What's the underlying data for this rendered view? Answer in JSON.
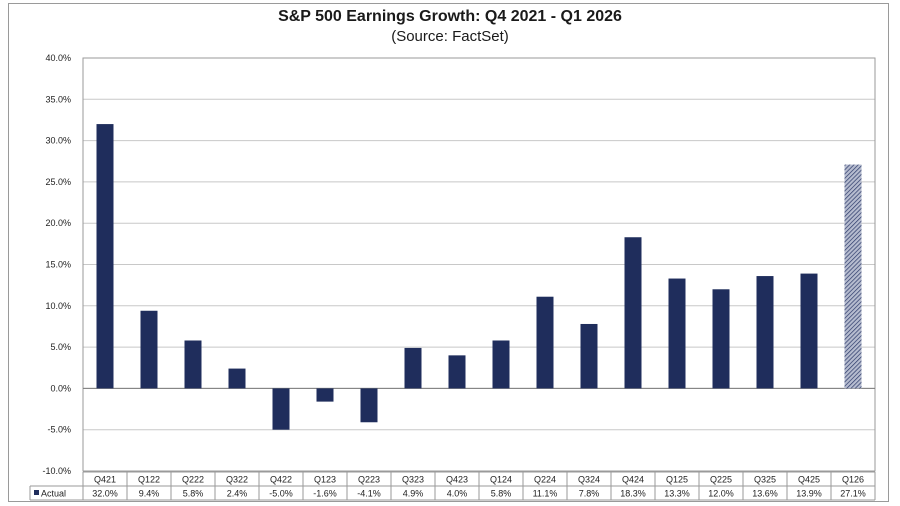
{
  "title": "S&P 500 Earnings Growth: Q4 2021 - Q1 2026",
  "subtitle": "(Source: FactSet)",
  "chart_data": {
    "type": "bar",
    "title": "S&P 500 Earnings Growth: Q4 2021 - Q1 2026",
    "subtitle": "(Source: FactSet)",
    "categories": [
      "Q421",
      "Q122",
      "Q222",
      "Q322",
      "Q422",
      "Q123",
      "Q223",
      "Q323",
      "Q423",
      "Q124",
      "Q224",
      "Q324",
      "Q424",
      "Q125",
      "Q225",
      "Q325",
      "Q425",
      "Q126"
    ],
    "series": [
      {
        "name": "Actual",
        "values": [
          32.0,
          9.4,
          5.8,
          2.4,
          -5.0,
          -1.6,
          -4.1,
          4.9,
          4.0,
          5.8,
          11.1,
          7.8,
          18.3,
          13.3,
          12.0,
          13.6,
          13.9,
          27.1
        ],
        "labels": [
          "32.0%",
          "9.4%",
          "5.8%",
          "2.4%",
          "-5.0%",
          "-1.6%",
          "-4.1%",
          "4.9%",
          "4.0%",
          "5.8%",
          "11.1%",
          "7.8%",
          "18.3%",
          "13.3%",
          "12.0%",
          "13.6%",
          "13.9%",
          "27.1%"
        ]
      }
    ],
    "estimate_categories": [
      "Q126"
    ],
    "ylim": [
      -10,
      40
    ],
    "yticks": [
      40,
      35,
      30,
      25,
      20,
      15,
      10,
      5,
      0,
      -5,
      -10
    ],
    "ytick_labels": [
      "40.0%",
      "35.0%",
      "30.0%",
      "25.0%",
      "20.0%",
      "15.0%",
      "10.0%",
      "5.0%",
      "0.0%",
      "-5.0%",
      "-10.0%"
    ],
    "grid": true,
    "legend_placement": "data-table-left",
    "colors": {
      "bar": "#1f2d5c",
      "estimate": "#8a93b0",
      "grid": "#c8c8c8"
    }
  }
}
